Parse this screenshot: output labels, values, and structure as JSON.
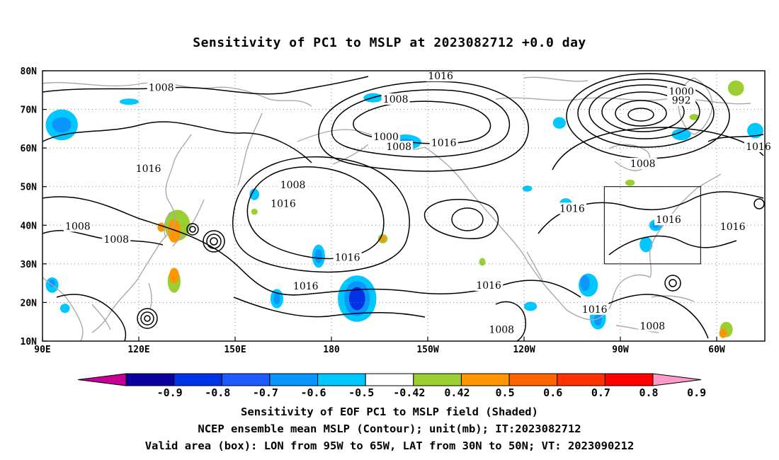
{
  "title": "Sensitivity of PC1 to MSLP at 2023082712 +0.0 day",
  "map": {
    "lon_ticks": [
      {
        "lon": 90,
        "label": "90E"
      },
      {
        "lon": 120,
        "label": "120E"
      },
      {
        "lon": 150,
        "label": "150E"
      },
      {
        "lon": 180,
        "label": "180"
      },
      {
        "lon": 210,
        "label": "150W"
      },
      {
        "lon": 240,
        "label": "120W"
      },
      {
        "lon": 270,
        "label": "90W"
      },
      {
        "lon": 300,
        "label": "60W"
      }
    ],
    "lat_ticks": [
      {
        "lat": 10,
        "label": "10N"
      },
      {
        "lat": 20,
        "label": "20N"
      },
      {
        "lat": 30,
        "label": "30N"
      },
      {
        "lat": 40,
        "label": "40N"
      },
      {
        "lat": 50,
        "label": "50N"
      },
      {
        "lat": 60,
        "label": "60N"
      },
      {
        "lat": 70,
        "label": "70N"
      },
      {
        "lat": 80,
        "label": "80N"
      }
    ],
    "lon_range": [
      90,
      315
    ],
    "lat_range": [
      10,
      80
    ],
    "valid_box": {
      "lon_min": 265,
      "lon_max": 295,
      "lat_min": 30,
      "lat_max": 50
    },
    "contour_labels": [
      {
        "text": "1008",
        "lon": 127,
        "lat": 75.5
      },
      {
        "text": "1016",
        "lon": 214,
        "lat": 78.5
      },
      {
        "text": "1008",
        "lon": 200,
        "lat": 72.5
      },
      {
        "text": "1000",
        "lon": 289,
        "lat": 74.5
      },
      {
        "text": "992",
        "lon": 289,
        "lat": 72.2
      },
      {
        "text": "1000",
        "lon": 197,
        "lat": 62.8
      },
      {
        "text": "1008",
        "lon": 201,
        "lat": 60.2
      },
      {
        "text": "1016",
        "lon": 215,
        "lat": 61.2
      },
      {
        "text": "1016",
        "lon": 123,
        "lat": 54.5
      },
      {
        "text": "1008",
        "lon": 168,
        "lat": 50.3
      },
      {
        "text": "1016",
        "lon": 165,
        "lat": 45.5
      },
      {
        "text": "1016",
        "lon": 313,
        "lat": 60.2
      },
      {
        "text": "1008",
        "lon": 277,
        "lat": 55.8
      },
      {
        "text": "1016",
        "lon": 255,
        "lat": 44.2
      },
      {
        "text": "1008",
        "lon": 101,
        "lat": 39.6
      },
      {
        "text": "1008",
        "lon": 113,
        "lat": 36.2
      },
      {
        "text": "1016",
        "lon": 285,
        "lat": 41.3
      },
      {
        "text": "1016",
        "lon": 305,
        "lat": 39.5
      },
      {
        "text": "1016",
        "lon": 185,
        "lat": 31.5
      },
      {
        "text": "1016",
        "lon": 172,
        "lat": 24.1
      },
      {
        "text": "1016",
        "lon": 229,
        "lat": 24.3
      },
      {
        "text": "1016",
        "lon": 262,
        "lat": 18.1
      },
      {
        "text": "1008",
        "lon": 233,
        "lat": 12.8
      },
      {
        "text": "1008",
        "lon": 280,
        "lat": 13.8
      }
    ],
    "shaded_patches": [
      {
        "color": "#00c8ff",
        "lon": 96,
        "lat": 66,
        "rx": 5,
        "ry": 4
      },
      {
        "color": "#0a96ff",
        "lon": 96,
        "lat": 66,
        "rx": 3,
        "ry": 2
      },
      {
        "color": "#00c8ff",
        "lon": 117,
        "lat": 72,
        "rx": 3,
        "ry": 0.8
      },
      {
        "color": "#00c8ff",
        "lon": 193,
        "lat": 73,
        "rx": 3,
        "ry": 1.2
      },
      {
        "color": "#00c8ff",
        "lon": 203,
        "lat": 61.5,
        "rx": 5,
        "ry": 2
      },
      {
        "color": "#0a96ff",
        "lon": 203,
        "lat": 61.3,
        "rx": 3,
        "ry": 1
      },
      {
        "color": "#00c8ff",
        "lon": 251,
        "lat": 66.5,
        "rx": 2,
        "ry": 1.5
      },
      {
        "color": "#00c8ff",
        "lon": 289,
        "lat": 63.5,
        "rx": 3,
        "ry": 1.5
      },
      {
        "color": "#00c8ff",
        "lon": 312,
        "lat": 64.5,
        "rx": 2.5,
        "ry": 2
      },
      {
        "color": "#9bce32",
        "lon": 306,
        "lat": 75.5,
        "rx": 2.5,
        "ry": 2
      },
      {
        "color": "#9bce32",
        "lon": 293,
        "lat": 68,
        "rx": 1.5,
        "ry": 0.8
      },
      {
        "color": "#00c8ff",
        "lon": 241,
        "lat": 49.5,
        "rx": 1.5,
        "ry": 0.8
      },
      {
        "color": "#00c8ff",
        "lon": 253,
        "lat": 45.5,
        "rx": 2,
        "ry": 1.5
      },
      {
        "color": "#00c8ff",
        "lon": 156,
        "lat": 48,
        "rx": 1.5,
        "ry": 1.5
      },
      {
        "color": "#9bce32",
        "lon": 156,
        "lat": 43.5,
        "rx": 1,
        "ry": 0.8
      },
      {
        "color": "#9bce32",
        "lon": 132,
        "lat": 40,
        "rx": 4,
        "ry": 4
      },
      {
        "color": "#ff9600",
        "lon": 131,
        "lat": 38.5,
        "rx": 2,
        "ry": 3
      },
      {
        "color": "#ff9600",
        "lon": 127,
        "lat": 39.5,
        "rx": 1.2,
        "ry": 1.2
      },
      {
        "color": "#9bce32",
        "lon": 131,
        "lat": 25.5,
        "rx": 2,
        "ry": 3
      },
      {
        "color": "#ff9600",
        "lon": 131,
        "lat": 27,
        "rx": 1.5,
        "ry": 2
      },
      {
        "color": "#00c8ff",
        "lon": 93,
        "lat": 24.5,
        "rx": 2,
        "ry": 2
      },
      {
        "color": "#0a96ff",
        "lon": 93,
        "lat": 25,
        "rx": 1,
        "ry": 1
      },
      {
        "color": "#00c8ff",
        "lon": 97,
        "lat": 18.5,
        "rx": 1.5,
        "ry": 1.2
      },
      {
        "color": "#00c8ff",
        "lon": 176,
        "lat": 32,
        "rx": 2,
        "ry": 3
      },
      {
        "color": "#0a96ff",
        "lon": 176,
        "lat": 32,
        "rx": 1.2,
        "ry": 1.8
      },
      {
        "color": "#00c8ff",
        "lon": 188,
        "lat": 21,
        "rx": 6,
        "ry": 6
      },
      {
        "color": "#0a96ff",
        "lon": 188,
        "lat": 21,
        "rx": 4,
        "ry": 4.5
      },
      {
        "color": "#0032e6",
        "lon": 188,
        "lat": 21,
        "rx": 2.5,
        "ry": 3
      },
      {
        "color": "#00c8ff",
        "lon": 163,
        "lat": 21,
        "rx": 2,
        "ry": 2.5
      },
      {
        "color": "#0a96ff",
        "lon": 163,
        "lat": 21,
        "rx": 1,
        "ry": 1.5
      },
      {
        "color": "#9bce32",
        "lon": 196,
        "lat": 36.5,
        "rx": 1.5,
        "ry": 1.2
      },
      {
        "color": "#ff9600",
        "lon": 196,
        "lat": 36.5,
        "rx": 0.8,
        "ry": 0.8
      },
      {
        "color": "#9bce32",
        "lon": 227,
        "lat": 30.5,
        "rx": 1,
        "ry": 1
      },
      {
        "color": "#00c8ff",
        "lon": 260,
        "lat": 24.5,
        "rx": 3,
        "ry": 3
      },
      {
        "color": "#0a96ff",
        "lon": 259,
        "lat": 25,
        "rx": 1.5,
        "ry": 2
      },
      {
        "color": "#00c8ff",
        "lon": 263,
        "lat": 16,
        "rx": 2.5,
        "ry": 3
      },
      {
        "color": "#0a96ff",
        "lon": 263,
        "lat": 15.5,
        "rx": 1.2,
        "ry": 1.5
      },
      {
        "color": "#00c8ff",
        "lon": 242,
        "lat": 19,
        "rx": 2,
        "ry": 1.2
      },
      {
        "color": "#00c8ff",
        "lon": 281,
        "lat": 40,
        "rx": 2,
        "ry": 1.5
      },
      {
        "color": "#0a96ff",
        "lon": 281,
        "lat": 40,
        "rx": 1,
        "ry": 0.8
      },
      {
        "color": "#00c8ff",
        "lon": 278,
        "lat": 35,
        "rx": 2,
        "ry": 2
      },
      {
        "color": "#9bce32",
        "lon": 303,
        "lat": 13,
        "rx": 2,
        "ry": 2
      },
      {
        "color": "#ff9600",
        "lon": 302,
        "lat": 12,
        "rx": 1.2,
        "ry": 1.2
      },
      {
        "color": "#9bce32",
        "lon": 273,
        "lat": 51,
        "rx": 1.5,
        "ry": 0.8
      }
    ]
  },
  "colorbar": {
    "labels": [
      "-0.9",
      "-0.8",
      "-0.7",
      "-0.6",
      "-0.5",
      "-0.42",
      "0.42",
      "0.5",
      "0.6",
      "0.7",
      "0.8",
      "0.9"
    ],
    "colors": [
      "#c80096",
      "#0a00a0",
      "#0032e6",
      "#1e5aff",
      "#0a96ff",
      "#00c8ff",
      "#ffffff",
      "#9bce32",
      "#ff9600",
      "#ff6400",
      "#ff3200",
      "#ff0000",
      "#ff9bc8"
    ]
  },
  "captions": {
    "line1": "Sensitivity of EOF PC1 to MSLP field (Shaded)",
    "line2": "NCEP ensemble mean MSLP (Contour); unit(mb); IT:2023082712",
    "line3": "Valid area (box): LON from 95W to 65W, LAT from 30N to 50N; VT: 2023090212"
  }
}
